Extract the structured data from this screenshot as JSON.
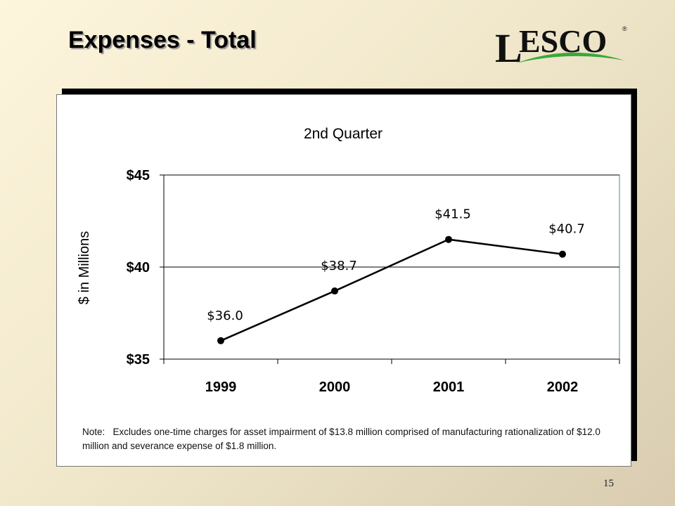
{
  "slide": {
    "title": "Expenses - Total",
    "logo_text": "ESCO",
    "logo_initial": "L",
    "logo_mark": "®",
    "page_number": "15"
  },
  "note": {
    "label": "Note:",
    "text": "Excludes one-time charges for asset impairment of $13.8 million comprised of manufacturing rationalization of $12.0 million and severance expense of $1.8 million."
  },
  "colors": {
    "line": "#000000",
    "logo_green": "#3aa83a",
    "plot_border": "#4f8f7f"
  },
  "chart_data": {
    "type": "line",
    "title": "2nd Quarter",
    "xlabel": "",
    "ylabel": "$ in Millions",
    "categories": [
      "1999",
      "2000",
      "2001",
      "2002"
    ],
    "series": [
      {
        "values": [
          36.0,
          38.7,
          41.5,
          40.7
        ]
      }
    ],
    "data_labels": [
      "$36.0",
      "$38.7",
      "$41.5",
      "$40.7"
    ],
    "ylim": [
      35,
      45
    ],
    "yticks": [
      35,
      40,
      45
    ],
    "ytick_labels": [
      "$35",
      "$40",
      "$45"
    ],
    "grid": "horizontal major at $40",
    "legend": "none"
  }
}
